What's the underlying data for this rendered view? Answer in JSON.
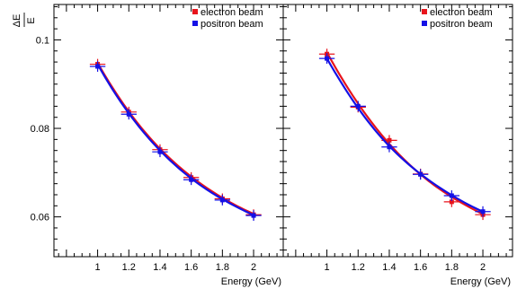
{
  "ylabel": {
    "numerator": "ΔE",
    "denominator": "E"
  },
  "colors": {
    "electron": "#e8141c",
    "positron": "#1410e6"
  },
  "chart_data": [
    {
      "type": "scatter",
      "xlabel": "Energy (GeV)",
      "xlim": [
        0.72,
        2.19
      ],
      "ylim": [
        0.051,
        0.108
      ],
      "xticks": [
        1,
        1.2,
        1.4,
        1.6,
        1.8,
        2
      ],
      "xtick_labels": [
        "1",
        "1.2",
        "1.4",
        "1.6",
        "1.8",
        "2"
      ],
      "yticks": [
        0.06,
        0.08,
        0.1
      ],
      "ytick_labels": [
        "0.06",
        "0.08",
        "0.1"
      ],
      "grid": false,
      "legend_position": "top-right",
      "series": [
        {
          "name": "electron beam",
          "color": "#e8141c",
          "x": [
            1.0,
            1.2,
            1.4,
            1.6,
            1.8,
            2.0
          ],
          "y": [
            0.0945,
            0.0837,
            0.0752,
            0.0689,
            0.0641,
            0.0605
          ],
          "xerr": 0.05,
          "yerr": 0.0012,
          "fit": [
            0.0948,
            0.0838,
            0.0754,
            0.0691,
            0.0643,
            0.0607
          ]
        },
        {
          "name": "positron beam",
          "color": "#1410e6",
          "x": [
            1.0,
            1.2,
            1.4,
            1.6,
            1.8,
            2.0
          ],
          "y": [
            0.094,
            0.0832,
            0.0747,
            0.0684,
            0.0638,
            0.0603
          ],
          "xerr": 0.05,
          "yerr": 0.0012,
          "fit": [
            0.0945,
            0.0834,
            0.075,
            0.0687,
            0.064,
            0.0604
          ]
        }
      ]
    },
    {
      "type": "scatter",
      "xlabel": "Energy (GeV)",
      "xlim": [
        0.72,
        2.19
      ],
      "ylim": [
        0.051,
        0.108
      ],
      "xticks": [
        1,
        1.2,
        1.4,
        1.6,
        1.8,
        2
      ],
      "xtick_labels": [
        "1",
        "1.2",
        "1.4",
        "1.6",
        "1.8",
        "2"
      ],
      "grid": false,
      "legend_position": "top-right",
      "series": [
        {
          "name": "electron beam",
          "color": "#e8141c",
          "x": [
            1.0,
            1.2,
            1.4,
            1.6,
            1.8,
            2.0
          ],
          "y": [
            0.0968,
            0.0848,
            0.0773,
            0.0697,
            0.0634,
            0.0605
          ],
          "xerr": 0.05,
          "yerr": 0.0012,
          "fit": [
            0.0972,
            0.0856,
            0.0765,
            0.0696,
            0.0645,
            0.0606
          ]
        },
        {
          "name": "positron beam",
          "color": "#1410e6",
          "x": [
            1.0,
            1.2,
            1.4,
            1.6,
            1.8,
            2.0
          ],
          "y": [
            0.0958,
            0.085,
            0.0758,
            0.0696,
            0.0648,
            0.0612
          ],
          "xerr": 0.05,
          "yerr": 0.0012,
          "fit": [
            0.0958,
            0.0846,
            0.076,
            0.0697,
            0.0649,
            0.0612
          ]
        }
      ]
    }
  ]
}
